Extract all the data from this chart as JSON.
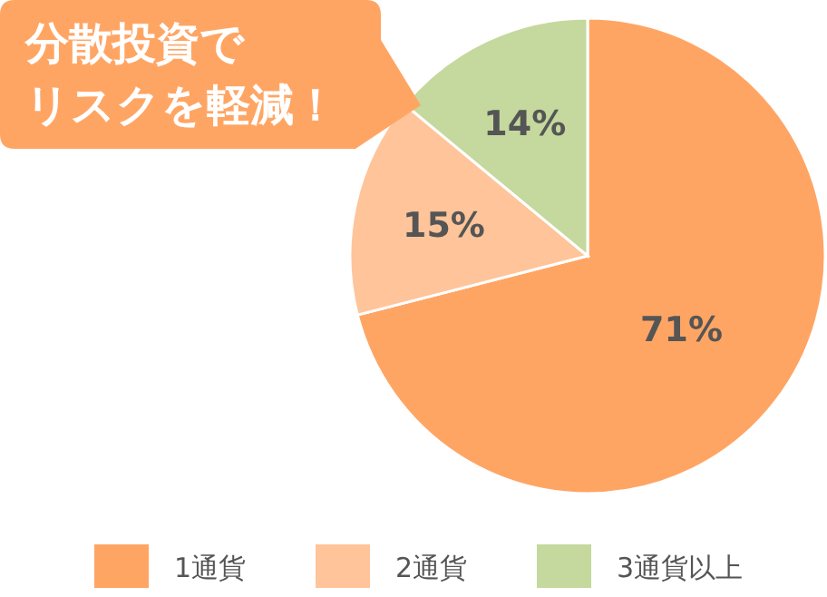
{
  "chart_data": {
    "type": "pie",
    "categories": [
      "1通貨",
      "2通貨",
      "3通貨以上"
    ],
    "values": [
      71,
      15,
      14
    ],
    "colors": [
      "#ffa564",
      "#ffc49a",
      "#c5d89d"
    ],
    "value_labels": [
      "71%",
      "15%",
      "14%"
    ],
    "legend": "bottom",
    "annotations": [
      "分散投資で",
      "リスクを軽減！"
    ]
  }
}
